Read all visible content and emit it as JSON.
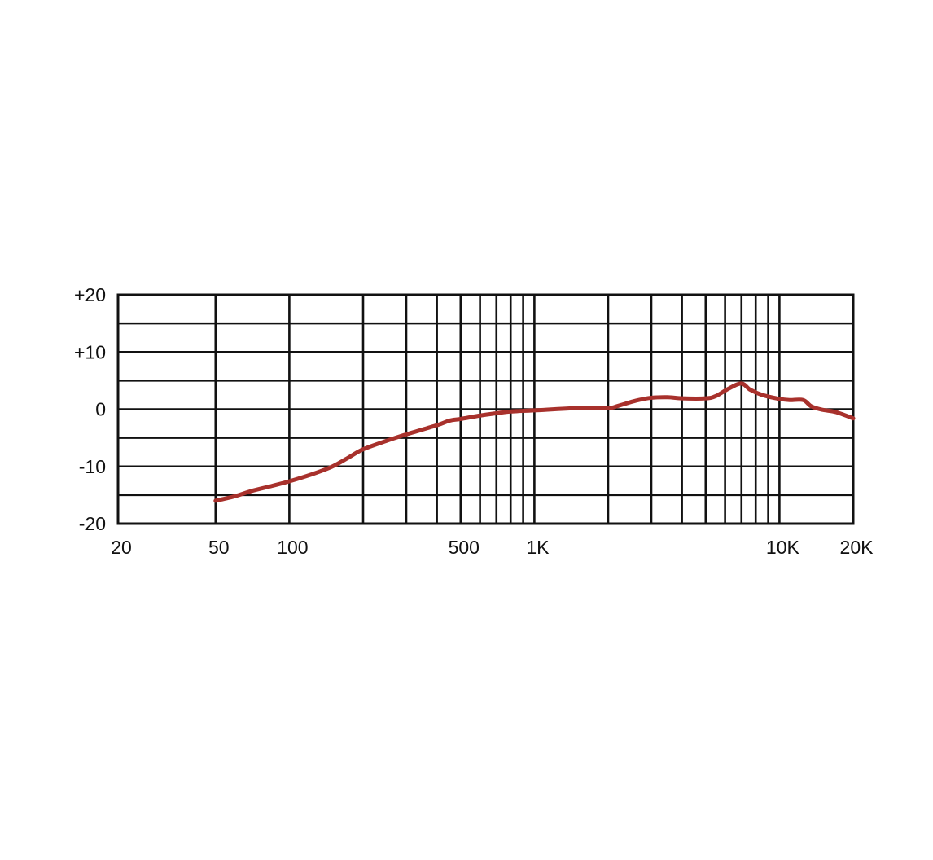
{
  "chart_data": {
    "type": "line",
    "title": "",
    "xlabel": "",
    "ylabel": "",
    "x_scale": "log",
    "xlim": [
      20,
      20000
    ],
    "ylim": [
      -20,
      20
    ],
    "grid": true,
    "x_tick_labels": [
      {
        "value": 20,
        "label": "20"
      },
      {
        "value": 50,
        "label": "50"
      },
      {
        "value": 100,
        "label": "100"
      },
      {
        "value": 500,
        "label": "500"
      },
      {
        "value": 1000,
        "label": "1K"
      },
      {
        "value": 10000,
        "label": "10K"
      },
      {
        "value": 20000,
        "label": "20K"
      }
    ],
    "y_tick_labels": [
      {
        "value": 20,
        "label": "+20"
      },
      {
        "value": 10,
        "label": "+10"
      },
      {
        "value": 0,
        "label": "0"
      },
      {
        "value": -10,
        "label": "-10"
      },
      {
        "value": -20,
        "label": "-20"
      }
    ],
    "x_gridlines": [
      50,
      100,
      200,
      300,
      400,
      500,
      600,
      700,
      800,
      900,
      1000,
      2000,
      3000,
      4000,
      5000,
      6000,
      7000,
      8000,
      9000,
      10000
    ],
    "y_gridlines": [
      -15,
      -10,
      -5,
      0,
      5,
      10,
      15
    ],
    "series": [
      {
        "color": "#a8312c",
        "points": [
          [
            50,
            -16
          ],
          [
            60,
            -15.2
          ],
          [
            70,
            -14.3
          ],
          [
            85,
            -13.4
          ],
          [
            100,
            -12.6
          ],
          [
            125,
            -11.3
          ],
          [
            150,
            -10
          ],
          [
            175,
            -8.4
          ],
          [
            200,
            -7
          ],
          [
            250,
            -5.5
          ],
          [
            300,
            -4.4
          ],
          [
            400,
            -2.8
          ],
          [
            450,
            -2
          ],
          [
            500,
            -1.7
          ],
          [
            600,
            -1.1
          ],
          [
            700,
            -0.7
          ],
          [
            800,
            -0.4
          ],
          [
            1000,
            -0.2
          ],
          [
            1500,
            0.2
          ],
          [
            2000,
            0.2
          ],
          [
            2200,
            0.6
          ],
          [
            2600,
            1.5
          ],
          [
            3000,
            2
          ],
          [
            3500,
            2.1
          ],
          [
            4000,
            1.9
          ],
          [
            5000,
            1.9
          ],
          [
            5500,
            2.3
          ],
          [
            6200,
            3.6
          ],
          [
            7000,
            4.5
          ],
          [
            7600,
            3.4
          ],
          [
            8500,
            2.5
          ],
          [
            10000,
            1.8
          ],
          [
            11000,
            1.6
          ],
          [
            12500,
            1.6
          ],
          [
            13500,
            0.5
          ],
          [
            15000,
            -0.1
          ],
          [
            17000,
            -0.5
          ],
          [
            20000,
            -1.6
          ]
        ]
      }
    ]
  }
}
